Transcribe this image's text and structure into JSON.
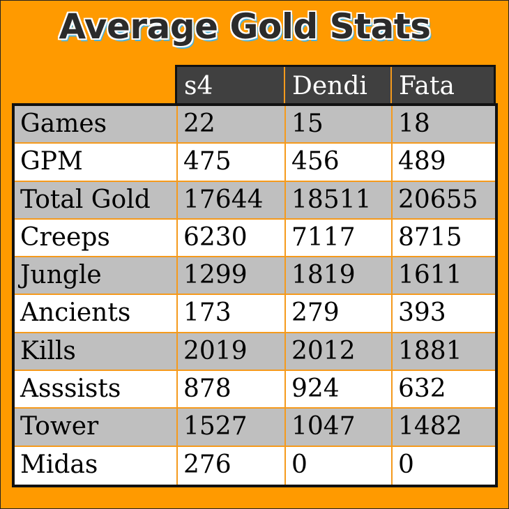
{
  "title": "Average Gold Stats",
  "colors": {
    "background": "#ff9a00",
    "header_bg": "#404040",
    "row_gray": "#bfbfbf",
    "row_white": "#ffffff",
    "grid_line": "#f59a1c",
    "title_shadow": "#4fb3d9"
  },
  "table": {
    "columns": [
      "s4",
      "Dendi",
      "Fata"
    ],
    "rows": [
      {
        "label": "Games",
        "values": [
          "22",
          "15",
          "18"
        ]
      },
      {
        "label": "GPM",
        "values": [
          "475",
          "456",
          "489"
        ]
      },
      {
        "label": "Total Gold",
        "values": [
          "17644",
          "18511",
          "20655"
        ]
      },
      {
        "label": "Creeps",
        "values": [
          "6230",
          "7117",
          "8715"
        ]
      },
      {
        "label": "Jungle",
        "values": [
          "1299",
          "1819",
          "1611"
        ]
      },
      {
        "label": "Ancients",
        "values": [
          "173",
          "279",
          "393"
        ]
      },
      {
        "label": "Kills",
        "values": [
          "2019",
          "2012",
          "1881"
        ]
      },
      {
        "label": "Asssists",
        "values": [
          "878",
          "924",
          "632"
        ]
      },
      {
        "label": "Tower",
        "values": [
          "1527",
          "1047",
          "1482"
        ]
      },
      {
        "label": "Midas",
        "values": [
          "276",
          "0",
          "0"
        ]
      }
    ]
  },
  "chart_data": {
    "type": "table",
    "title": "Average Gold Stats",
    "categories": [
      "Games",
      "GPM",
      "Total Gold",
      "Creeps",
      "Jungle",
      "Ancients",
      "Kills",
      "Asssists",
      "Tower",
      "Midas"
    ],
    "series": [
      {
        "name": "s4",
        "values": [
          22,
          475,
          17644,
          6230,
          1299,
          173,
          2019,
          878,
          1527,
          276
        ]
      },
      {
        "name": "Dendi",
        "values": [
          15,
          456,
          18511,
          7117,
          1819,
          279,
          2012,
          924,
          1047,
          0
        ]
      },
      {
        "name": "Fata",
        "values": [
          18,
          489,
          20655,
          8715,
          1611,
          393,
          1881,
          632,
          1482,
          0
        ]
      }
    ]
  }
}
